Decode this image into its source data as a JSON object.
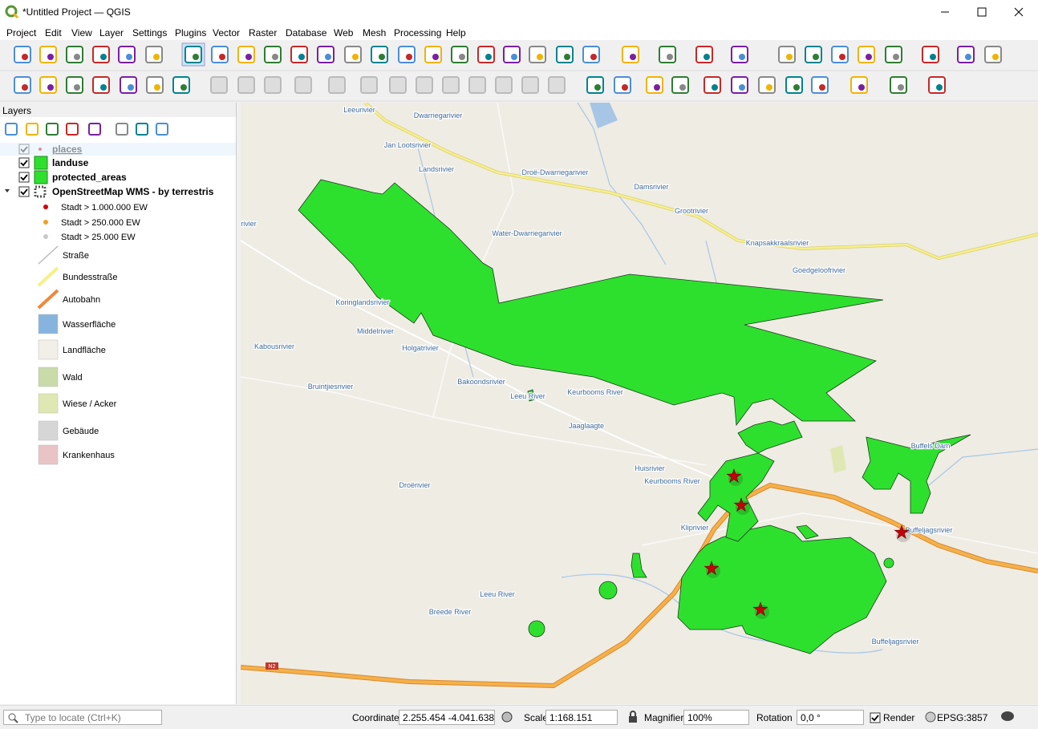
{
  "window": {
    "title": "*Untitled Project — QGIS"
  },
  "menu": {
    "items": [
      "Project",
      "Edit",
      "View",
      "Layer",
      "Settings",
      "Plugins",
      "Vector",
      "Raster",
      "Database",
      "Web",
      "Mesh",
      "Processing",
      "Help"
    ]
  },
  "layers_panel": {
    "title": "Layers",
    "layers": [
      {
        "name": "places",
        "checked": true,
        "color": "#c8000a"
      },
      {
        "name": "landuse",
        "checked": true,
        "color": "#2ee02e"
      },
      {
        "name": "protected_areas",
        "checked": true,
        "color": "#2ee02e"
      },
      {
        "name": "OpenStreetMap WMS - by terrestris",
        "checked": true,
        "color": "#555555"
      }
    ],
    "legend": [
      {
        "label": "Stadt > 1.000.000 EW",
        "symbol": "dot",
        "color": "#d40000"
      },
      {
        "label": "Stadt > 250.000 EW",
        "symbol": "dot",
        "color": "#f0a020"
      },
      {
        "label": "Stadt > 25.000 EW",
        "symbol": "dot",
        "color": "#c8c8c8"
      },
      {
        "label": "Straße",
        "symbol": "line",
        "color": "#bbbbbb"
      },
      {
        "label": "Bundesstraße",
        "symbol": "line",
        "color": "#f7f08a"
      },
      {
        "label": "Autobahn",
        "symbol": "line",
        "color": "#f0883a"
      },
      {
        "label": "Wasserfläche",
        "symbol": "fill",
        "color": "#86b4de"
      },
      {
        "label": "Landfläche",
        "symbol": "fill",
        "color": "#f2efe9"
      },
      {
        "label": "Wald",
        "symbol": "fill",
        "color": "#c8dba8"
      },
      {
        "label": "Wiese / Acker",
        "symbol": "fill",
        "color": "#dfe8b2"
      },
      {
        "label": "Gebäude",
        "symbol": "fill",
        "color": "#d6d6d6"
      },
      {
        "label": "Krankenhaus",
        "symbol": "fill",
        "color": "#e8c4c4"
      }
    ]
  },
  "map": {
    "labels": [
      "Leeurivier",
      "Dwarriegarivier",
      "Jan Lootsrivier",
      "Landsrivier",
      "Droë-Dwarriegarivier",
      "Damsrivier",
      "Grootrivier",
      "Knapsakkraalsrivier",
      "Water-Dwarriegarivier",
      "Goedgeloofrivier",
      "rivier",
      "Koringlandsrivier",
      "Middelrivier",
      "Kabousrivier",
      "Holgatrivier",
      "Bruintjiesrivier",
      "Bakoondsrivier",
      "Leeu River",
      "Keurbooms River",
      "Jaaglaagte",
      "Huisrivier",
      "Keurbooms River",
      "Droërivier",
      "Kliprivier",
      "Leeu River",
      "Breede River",
      "Buffeljagsrivier",
      "Buffeljagsrivier",
      "Buffels Dam"
    ],
    "road_shield": "N2"
  },
  "status_bar": {
    "locator_placeholder": "Type to locate (Ctrl+K)",
    "coordinate_label": "Coordinate",
    "coordinate": "2.255.454  -4.041.638",
    "scale_label": "Scale",
    "scale": "1:168.151",
    "magnifier_label": "Magnifier",
    "magnifier": "100%",
    "rotation_label": "Rotation",
    "rotation": "0,0 °",
    "render_label": "Render",
    "render_checked": true,
    "crs": "EPSG:3857"
  }
}
